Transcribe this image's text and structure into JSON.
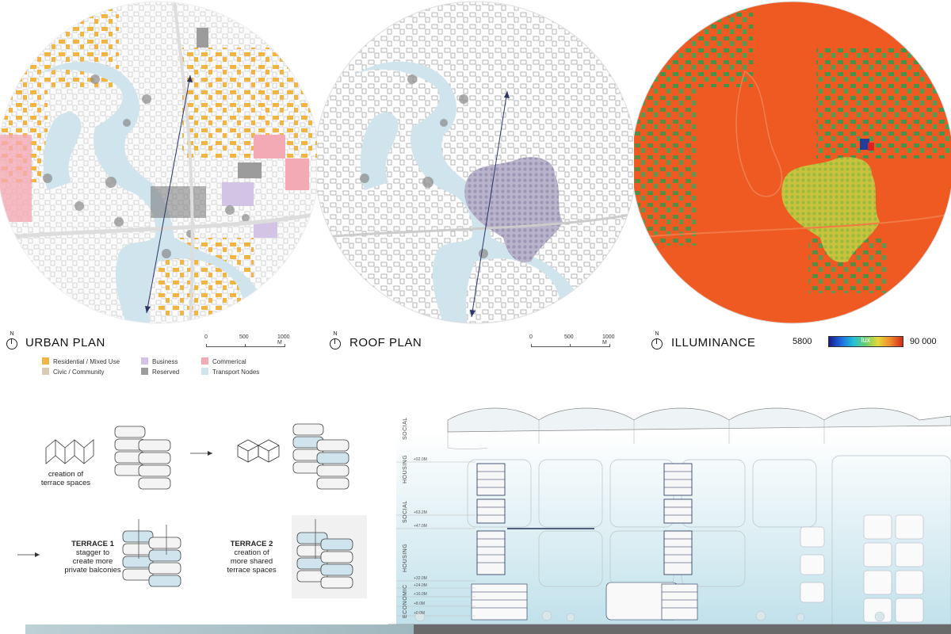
{
  "panels": [
    {
      "title": "URBAN PLAN"
    },
    {
      "title": "ROOF PLAN"
    },
    {
      "title": "ILLUMINANCE"
    }
  ],
  "north_label": "N",
  "scale_bar": {
    "ticks": [
      "0",
      "500",
      "1000 M"
    ]
  },
  "legend": [
    {
      "label": "Residential / Mixed Use",
      "color": "#f2b544"
    },
    {
      "label": "Civic / Community",
      "color": "#d9cbb3"
    },
    {
      "label": "Business",
      "color": "#d3c3e4"
    },
    {
      "label": "Reserved",
      "color": "#9c9c9c"
    },
    {
      "label": "Commerical",
      "color": "#f4aab4"
    },
    {
      "label": "Transport Nodes",
      "color": "#cfe4ec"
    }
  ],
  "colorbar": {
    "min": "5800",
    "unit": "lux",
    "max": "90 000"
  },
  "diagram": {
    "step0": "creation of\nterrace spaces",
    "arrow": "⟶",
    "terrace1_title": "TERRACE 1",
    "terrace1_text": "stagger to\ncreate more\nprivate balconies",
    "terrace2_title": "TERRACE 2",
    "terrace2_text": "creation of\nmore shared\nterrace spaces"
  },
  "section": {
    "zones": [
      "SOCIAL",
      "HOUSING",
      "SOCIAL",
      "HOUSING",
      "ECONOMIC"
    ],
    "levels": [
      "+92.0M",
      "+63.2M",
      "+47.0M",
      "+32.0M",
      "+24.0M",
      "+16.0M",
      "+8.0M",
      "+0.0M"
    ]
  },
  "colors": {
    "residential": "#f2b544",
    "water": "#cfe4ec",
    "roof": "#b9b4cc",
    "illum_bg": "#ee5a22",
    "illum_green": "#2f9a4e",
    "illum_yellow": "#d6c93a"
  }
}
